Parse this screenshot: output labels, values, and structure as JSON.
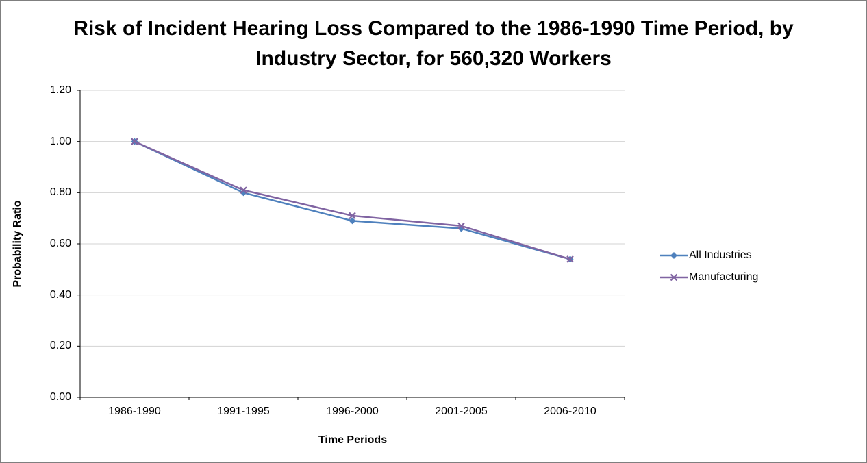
{
  "chart_data": {
    "type": "line",
    "title": "Risk of Incident Hearing Loss Compared to the 1986-1990 Time Period, by Industry Sector, for 560,320 Workers",
    "xlabel": "Time Periods",
    "ylabel": "Probability Ratio",
    "categories": [
      "1986-1990",
      "1991-1995",
      "1996-2000",
      "2001-2005",
      "2006-2010"
    ],
    "series": [
      {
        "name": "All Industries",
        "values": [
          1.0,
          0.8,
          0.69,
          0.66,
          0.54
        ],
        "color": "#4F81BD",
        "marker": "diamond"
      },
      {
        "name": "Manufacturing",
        "values": [
          1.0,
          0.81,
          0.71,
          0.67,
          0.54
        ],
        "color": "#8064A2",
        "marker": "x"
      }
    ],
    "ylim": [
      0.0,
      1.2
    ],
    "ytick_step": 0.2,
    "ytick_labels": [
      "0.00",
      "0.20",
      "0.40",
      "0.60",
      "0.80",
      "1.00",
      "1.20"
    ],
    "grid": true,
    "legend_position": "right",
    "colors": {
      "gridline": "#D3D3D3",
      "axis": "#000000",
      "background": "#FFFFFF",
      "border": "#7F7F7F"
    }
  }
}
